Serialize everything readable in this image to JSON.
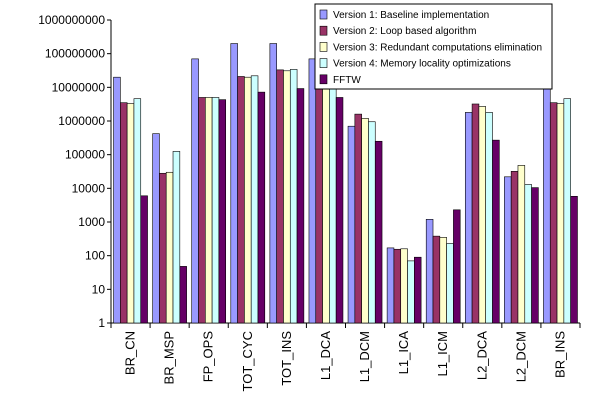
{
  "chart_data": {
    "type": "bar",
    "yscale": "log",
    "ylim": [
      1,
      1000000000
    ],
    "yticks": [
      1,
      10,
      100,
      1000,
      10000,
      100000,
      1000000,
      10000000,
      100000000,
      1000000000
    ],
    "ytick_labels": [
      "1",
      "10",
      "100",
      "1000",
      "10000",
      "100000",
      "1000000",
      "10000000",
      "100000000",
      "1000000000"
    ],
    "categories": [
      "BR_CN",
      "BR_MSP",
      "FP_OPS",
      "TOT_CYC",
      "TOT_INS",
      "L1_DCA",
      "L1_DCM",
      "L1_ICA",
      "L1_ICM",
      "L2_DCA",
      "L2_DCM",
      "BR_INS"
    ],
    "legend_position": "top-right",
    "grid": false,
    "series": [
      {
        "name": "Version 1: Baseline implementation",
        "color": "#9999ff",
        "values": [
          20000000,
          420000,
          70000000,
          200000000,
          200000000,
          70000000,
          700000,
          170,
          1200,
          1800000,
          22000,
          20000000
        ]
      },
      {
        "name": "Version 2: Loop based algorithm",
        "color": "#993366",
        "values": [
          3500000,
          28000,
          5000000,
          21000000,
          33000000,
          12000000,
          1600000,
          155,
          380,
          3200000,
          32000,
          3500000
        ]
      },
      {
        "name": "Version 3: Redundant computations elimination",
        "color": "#ffffcc",
        "values": [
          3300000,
          30000,
          5000000,
          20000000,
          31000000,
          11000000,
          1200000,
          160,
          350,
          2700000,
          48000,
          3300000
        ]
      },
      {
        "name": "Version 4: Memory locality optimizations",
        "color": "#ccffff",
        "values": [
          4600000,
          125000,
          5000000,
          22000000,
          34000000,
          9000000,
          950000,
          70,
          230,
          1800000,
          13000,
          4600000
        ]
      },
      {
        "name": "FFTW",
        "color": "#660066",
        "values": [
          6000,
          48,
          4300000,
          7200000,
          9200000,
          5000000,
          250000,
          90,
          2300,
          270000,
          10500,
          5800
        ]
      }
    ]
  }
}
